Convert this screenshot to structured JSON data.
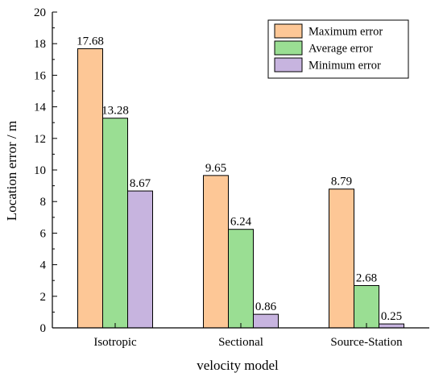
{
  "chart_data": {
    "type": "bar",
    "title": "",
    "xlabel": "velocity model",
    "ylabel": "Location error / m",
    "categories": [
      "Isotropic",
      "Sectional",
      "Source-Station"
    ],
    "series": [
      {
        "name": "Maximum error",
        "values": [
          17.68,
          9.65,
          8.79
        ],
        "color": "#FDC796"
      },
      {
        "name": "Average error",
        "values": [
          13.28,
          6.24,
          2.68
        ],
        "color": "#9ADE93"
      },
      {
        "name": "Minimum error",
        "values": [
          8.67,
          0.86,
          0.25
        ],
        "color": "#C7B4DF"
      }
    ],
    "data_labels": [
      [
        "17.68",
        "9.65",
        "8.79"
      ],
      [
        "13.28",
        "6.24",
        "2.68"
      ],
      [
        "8.67",
        "0.86",
        "0.25"
      ]
    ],
    "ylim": [
      0,
      20
    ],
    "yticks": [
      0,
      2,
      4,
      6,
      8,
      10,
      12,
      14,
      16,
      18,
      20
    ],
    "ytick_labels": [
      "0",
      "2",
      "4",
      "6",
      "8",
      "10",
      "12",
      "14",
      "16",
      "18",
      "20"
    ],
    "grid": false,
    "legend_position": "top-right"
  }
}
